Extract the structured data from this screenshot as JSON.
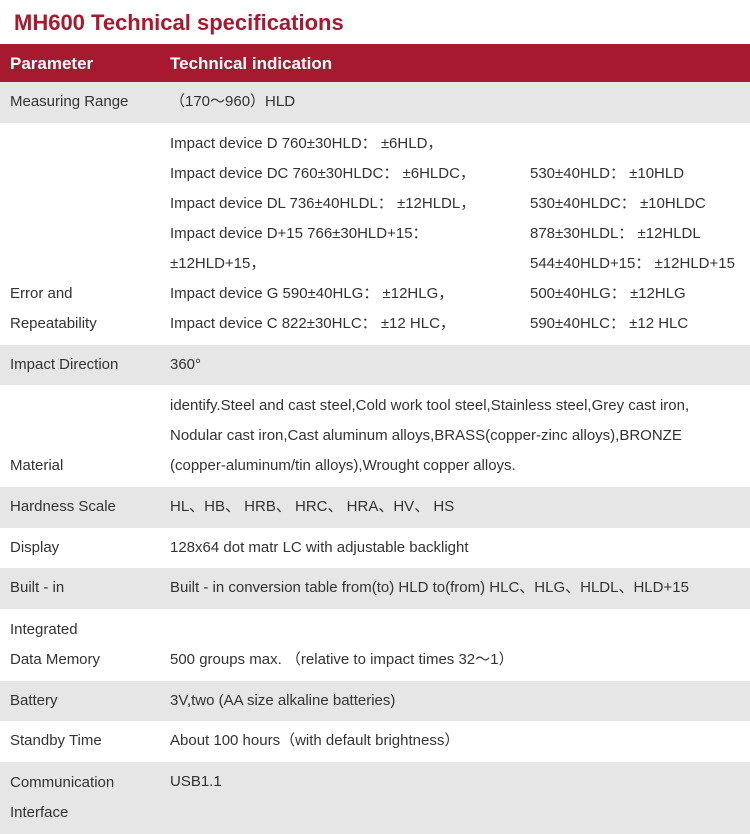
{
  "title": "MH600 Technical specifications",
  "colors": {
    "brand": "#a6192e",
    "header_text": "#ffffff",
    "row_shaded": "#e6e6e6",
    "row_plain": "#ffffff",
    "text": "#333333"
  },
  "headers": {
    "parameter": "Parameter",
    "indication": "Technical indication"
  },
  "rows": {
    "measuring_range": {
      "param": "Measuring Range",
      "value": "（170～960）HLD"
    },
    "error_repeatability": {
      "param": "Error and Repeatability",
      "colA_lines": [
        "Impact device D  760±30HLD： ±6HLD，",
        "Impact device DC 760±30HLDC： ±6HLDC，",
        "Impact device DL 736±40HLDL： ±12HLDL，",
        "Impact device D+15 766±30HLD+15： ±12HLD+15，",
        "Impact device G   590±40HLG： ±12HLG，",
        "Impact device C   822±30HLC： ±12 HLC，"
      ],
      "colB_lines": [
        "530±40HLD： ±10HLD",
        "530±40HLDC： ±10HLDC",
        "878±30HLDL： ±12HLDL",
        "544±40HLD+15： ±12HLD+15",
        "500±40HLG： ±12HLG",
        "590±40HLC： ±12 HLC"
      ]
    },
    "impact_direction": {
      "param": "Impact Direction",
      "value": "360°"
    },
    "material": {
      "param": "Material",
      "lines": [
        "identify.Steel and cast steel,Cold work tool steel,Stainless steel,Grey cast iron,",
        "Nodular cast iron,Cast aluminum alloys,BRASS(copper-zinc alloys),BRONZE",
        "(copper-aluminum/tin alloys),Wrought copper alloys."
      ]
    },
    "hardness_scale": {
      "param": "Hardness Scale",
      "value": "HL、HB、 HRB、 HRC、 HRA、HV、 HS"
    },
    "display": {
      "param": "Display",
      "value": "128x64 dot matr LC with adjustable backlight"
    },
    "built_in": {
      "param": "Built - in",
      "value": "Built - in conversion table from(to) HLD to(from) HLC、HLG、HLDL、HLD+15"
    },
    "data_memory": {
      "param": "Integrated Data Memory",
      "value": "500 groups max. （relative to impact times 32～1）"
    },
    "battery": {
      "param": "Battery",
      "value": "3V,two (AA size alkaline batteries)"
    },
    "standby_time": {
      "param": "Standby Time",
      "value": "About 100 hours（with default brightness）"
    },
    "communication": {
      "param": "Communication Interface",
      "value": "USB1.1"
    }
  }
}
